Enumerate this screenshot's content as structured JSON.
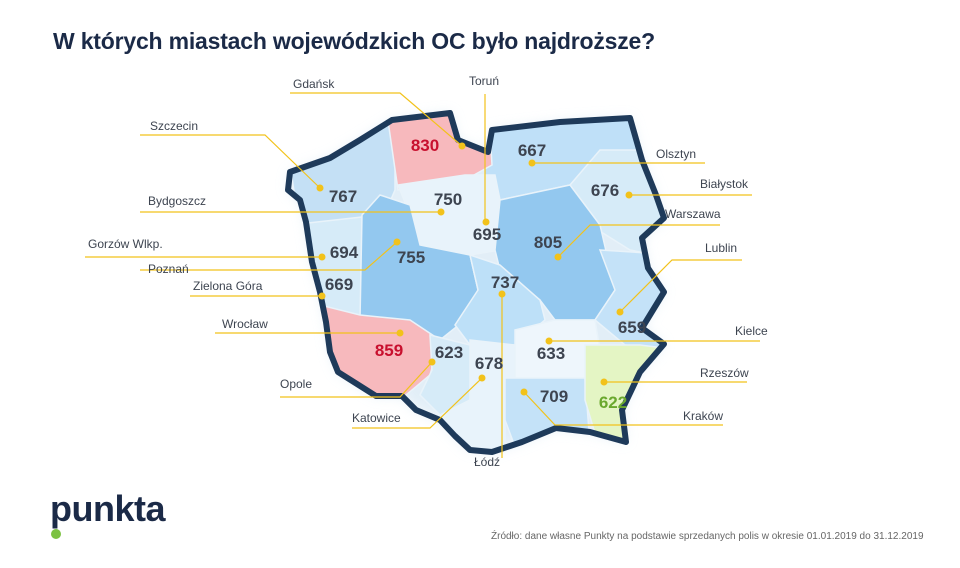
{
  "title": "W których miastach wojewódzkich OC było najdroższe?",
  "logo": "punkta",
  "source": "Źródło: dane własne Punkty na podstawie sprzedanych polis w okresie 01.01.2019 do 31.12.2019",
  "colors": {
    "highest": "#c8102e",
    "lowest": "#6aa82e",
    "normal": "#3d4450",
    "leader": "#f2c21b",
    "border": "#1e3a5a"
  },
  "cities": [
    {
      "city": "Gdańsk",
      "value": 830,
      "highlight": "highest"
    },
    {
      "city": "Toruń",
      "value": 695
    },
    {
      "city": "Szczecin",
      "value": 767
    },
    {
      "city": "Bydgoszcz",
      "value": 750
    },
    {
      "city": "Gorzów Wlkp.",
      "value": 694
    },
    {
      "city": "Poznań",
      "value": 755
    },
    {
      "city": "Zielona Góra",
      "value": 669
    },
    {
      "city": "Wrocław",
      "value": 859,
      "highlight": "highest"
    },
    {
      "city": "Opole",
      "value": 623
    },
    {
      "city": "Katowice",
      "value": 678
    },
    {
      "city": "Łódź",
      "value": 737
    },
    {
      "city": "Olsztyn",
      "value": 667
    },
    {
      "city": "Białystok",
      "value": 676
    },
    {
      "city": "Warszawa",
      "value": 805
    },
    {
      "city": "Lublin",
      "value": 659
    },
    {
      "city": "Kielce",
      "value": 633
    },
    {
      "city": "Rzeszów",
      "value": 622,
      "highlight": "lowest"
    },
    {
      "city": "Kraków",
      "value": 709
    }
  ]
}
